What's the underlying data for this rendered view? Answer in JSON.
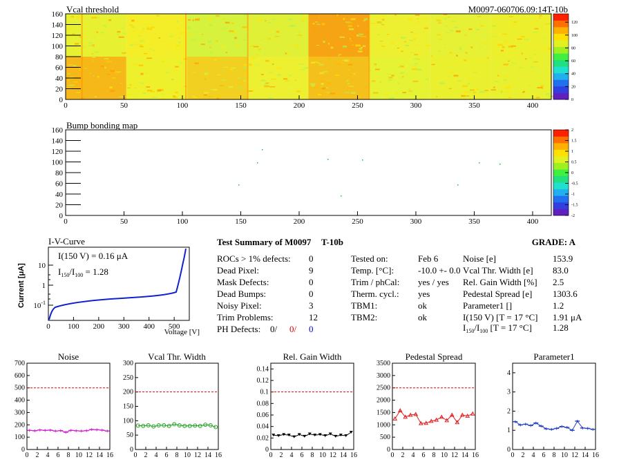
{
  "top_map": {
    "title": "Vcal threshold",
    "module_label": "M0097-060706.09:14T-10b",
    "x_ticks": [
      "0",
      "50",
      "100",
      "150",
      "200",
      "250",
      "300",
      "350",
      "400"
    ],
    "y_ticks": [
      "0",
      "20",
      "40",
      "60",
      "80",
      "100",
      "120",
      "140",
      "160"
    ],
    "palette_ticks": [
      "0",
      "20",
      "40",
      "60",
      "80",
      "100",
      "120"
    ],
    "xlim": [
      0,
      416
    ],
    "ylim": [
      0,
      160
    ]
  },
  "bump_map": {
    "title": "Bump bonding map",
    "x_ticks": [
      "0",
      "50",
      "100",
      "150",
      "200",
      "250",
      "300",
      "350",
      "400"
    ],
    "y_ticks": [
      "0",
      "20",
      "40",
      "60",
      "80",
      "100",
      "120",
      "140",
      "160"
    ],
    "palette_ticks": [
      "-2",
      "-1.5",
      "-1",
      "-0.5",
      "0",
      "0.5",
      "1",
      "1.5",
      "2"
    ],
    "xlim": [
      0,
      416
    ],
    "ylim": [
      0,
      160
    ]
  },
  "iv": {
    "title": "I-V-Curve",
    "line1": "I(150 V) = 0.16 μA",
    "line2_a": "I",
    "line2_sub1": "150",
    "line2_b": "/I",
    "line2_sub2": "100",
    "line2_c": " =  1.28",
    "ylabel": "Current [μA]",
    "xlabel": "Voltage [V]",
    "x_ticks": [
      "0",
      "100",
      "200",
      "300",
      "400",
      "500"
    ],
    "y_ticks": [
      "10",
      "1"
    ],
    "y_tick_exp_base": "10",
    "y_tick_exp": "-1"
  },
  "summary": {
    "title": "Test Summary of M0097",
    "title_suffix": "T-10b",
    "grade": "GRADE:  A",
    "left": [
      {
        "label": "ROCs > 1% defects:",
        "value": "0"
      },
      {
        "label": "Dead Pixel:",
        "value": "9"
      },
      {
        "label": "Mask Defects:",
        "value": "0"
      },
      {
        "label": "Dead Bumps:",
        "value": "0"
      },
      {
        "label": "Noisy Pixel:",
        "value": "3"
      },
      {
        "label": "Trim Problems:",
        "value": "12"
      }
    ],
    "ph_label": "PH Defects:",
    "ph_values": [
      "0/",
      "0/",
      "0"
    ],
    "mid": [
      {
        "label": "Tested on:",
        "value": "Feb 6"
      },
      {
        "label": "Temp. [°C]:",
        "value": "-10.0 +- 0.0"
      },
      {
        "label": "Trim / phCal:",
        "value": "yes / yes"
      },
      {
        "label": "Therm. cycl.:",
        "value": "yes"
      },
      {
        "label": "TBM1:",
        "value": "ok"
      },
      {
        "label": "TBM2:",
        "value": "ok"
      }
    ],
    "right": [
      {
        "label": "Noise [e]",
        "value": "153.9"
      },
      {
        "label": "Vcal Thr. Width [e]",
        "value": "83.0"
      },
      {
        "label": "Rel. Gain Width [%]",
        "value": "2.5"
      },
      {
        "label": "Pedestal Spread [e]",
        "value": "1303.6"
      },
      {
        "label": "Parameter1 []",
        "value": "1.2"
      },
      {
        "label": "I(150 V) [T = 17 °C]",
        "value": "1.91 μA"
      }
    ],
    "ratio_label_a": "I",
    "ratio_sub1": "150",
    "ratio_label_b": "/I",
    "ratio_sub2": "100",
    "ratio_label_c": "  [T = 17 °C]",
    "ratio_value": "1.28"
  },
  "chart_data": [
    {
      "type": "line",
      "title": "Noise",
      "x": [
        0,
        1,
        2,
        3,
        4,
        5,
        6,
        7,
        8,
        9,
        10,
        11,
        12,
        13,
        14,
        15
      ],
      "values": [
        155,
        152,
        158,
        155,
        157,
        150,
        153,
        140,
        155,
        152,
        150,
        153,
        162,
        160,
        157,
        150
      ],
      "ylim": [
        0,
        700
      ],
      "y_ticks": [
        "0",
        "100",
        "200",
        "300",
        "400",
        "500",
        "600",
        "700"
      ],
      "x_ticks": [
        "0",
        "2",
        "4",
        "6",
        "8",
        "10",
        "12",
        "14",
        "16"
      ],
      "cut": 500,
      "color": "#d020d0",
      "marker": "bar"
    },
    {
      "type": "line",
      "title": "Vcal Thr. Width",
      "x": [
        0,
        1,
        2,
        3,
        4,
        5,
        6,
        7,
        8,
        9,
        10,
        11,
        12,
        13,
        14,
        15
      ],
      "values": [
        83,
        82,
        84,
        80,
        84,
        84,
        82,
        88,
        84,
        82,
        82,
        83,
        82,
        86,
        84,
        78
      ],
      "ylim": [
        0,
        300
      ],
      "y_ticks": [
        "0",
        "50",
        "100",
        "150",
        "200",
        "250",
        "300"
      ],
      "x_ticks": [
        "0",
        "2",
        "4",
        "6",
        "8",
        "10",
        "12",
        "14",
        "16"
      ],
      "cut": 200,
      "color": "#20a020",
      "marker": "circle"
    },
    {
      "type": "line",
      "title": "Rel. Gain Width",
      "x": [
        0,
        1,
        2,
        3,
        4,
        5,
        6,
        7,
        8,
        9,
        10,
        11,
        12,
        13,
        14,
        15
      ],
      "values": [
        0.025,
        0.024,
        0.026,
        0.025,
        0.022,
        0.026,
        0.023,
        0.027,
        0.025,
        0.026,
        0.024,
        0.027,
        0.023,
        0.025,
        0.024,
        0.03
      ],
      "ylim": [
        0,
        0.15
      ],
      "y_ticks": [
        "0",
        "0.02",
        "0.04",
        "0.06",
        "0.08",
        "0.1",
        "0.12",
        "0.14"
      ],
      "x_ticks": [
        "0",
        "2",
        "4",
        "6",
        "8",
        "10",
        "12",
        "14",
        "16"
      ],
      "cut": 0.1,
      "color": "#000000",
      "marker": "triangle"
    },
    {
      "type": "line",
      "title": "Pedestal Spread",
      "x": [
        0,
        1,
        2,
        3,
        4,
        5,
        6,
        7,
        8,
        9,
        10,
        11,
        12,
        13,
        14,
        15
      ],
      "values": [
        1250,
        1580,
        1320,
        1400,
        1430,
        1060,
        1070,
        1150,
        1200,
        1320,
        1180,
        1400,
        1100,
        1400,
        1360,
        1450
      ],
      "ylim": [
        0,
        3500
      ],
      "y_ticks": [
        "0",
        "500",
        "1000",
        "1500",
        "2000",
        "2500",
        "3000",
        "3500"
      ],
      "x_ticks": [
        "0",
        "2",
        "4",
        "6",
        "8",
        "10",
        "12",
        "14",
        "16"
      ],
      "cut": 2500,
      "color": "#e02020",
      "marker": "triangle-open"
    },
    {
      "type": "line",
      "title": "Parameter1",
      "x": [
        0,
        1,
        2,
        3,
        4,
        5,
        6,
        7,
        8,
        9,
        10,
        11,
        12,
        13,
        14,
        15
      ],
      "values": [
        1.45,
        1.28,
        1.32,
        1.25,
        1.38,
        1.22,
        1.08,
        1.05,
        1.1,
        1.2,
        1.15,
        1.0,
        1.48,
        1.12,
        1.1,
        1.05
      ],
      "ylim": [
        0,
        4.5
      ],
      "y_ticks": [
        "0",
        "1",
        "2",
        "3",
        "4"
      ],
      "x_ticks": [
        "0",
        "2",
        "4",
        "6",
        "8",
        "10",
        "12",
        "14",
        "16"
      ],
      "cut": null,
      "color": "#2040c0",
      "marker": "bar"
    }
  ]
}
